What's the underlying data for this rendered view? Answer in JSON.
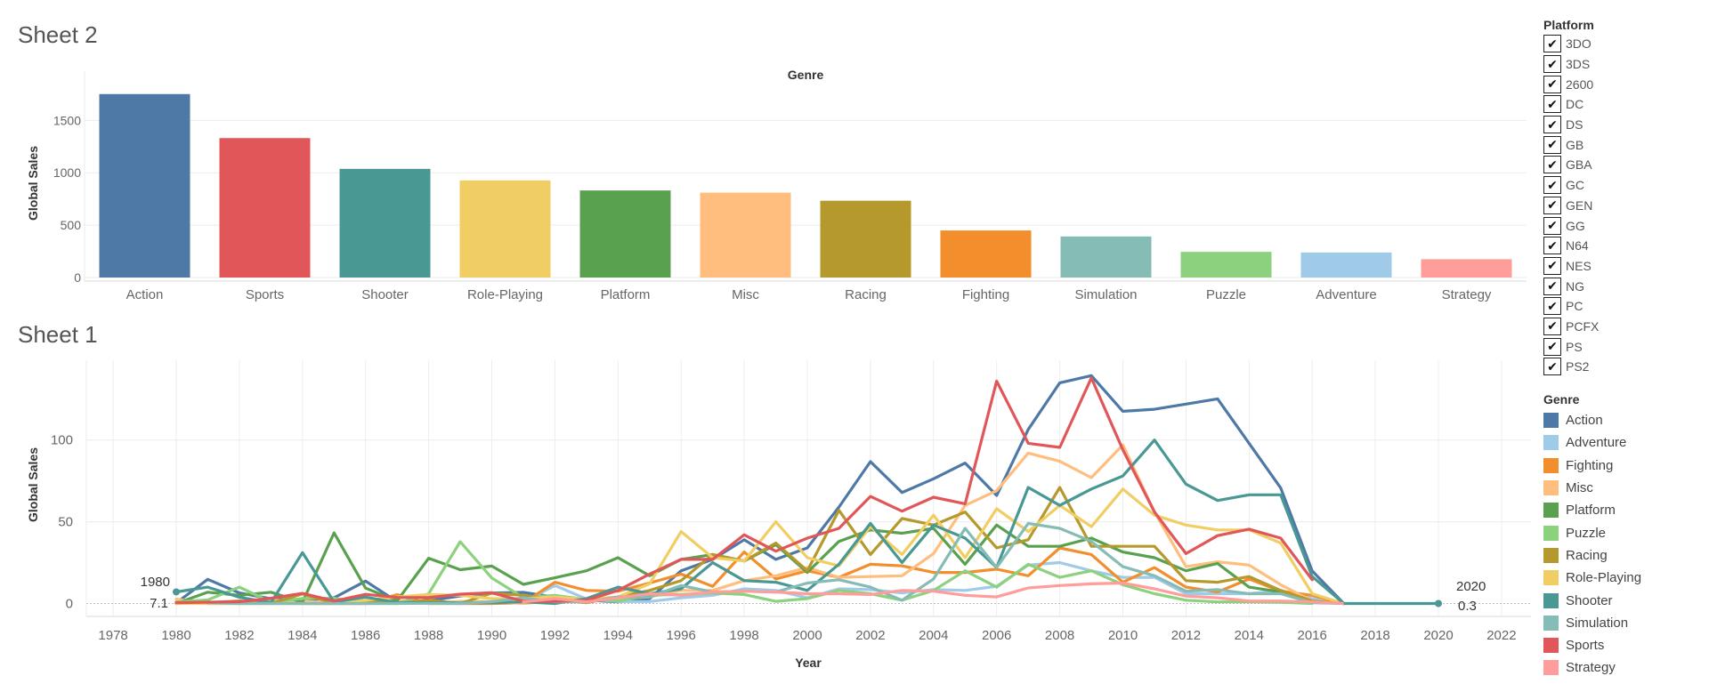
{
  "sheets": {
    "sheet2_title": "Sheet 2",
    "sheet1_title": "Sheet 1"
  },
  "colors": {
    "Action": "#4e79a7",
    "Adventure": "#a0cbe8",
    "Fighting": "#f28e2b",
    "Misc": "#ffbe7d",
    "Platform": "#59a14f",
    "Puzzle": "#8cd17d",
    "Racing": "#b6992d",
    "Role-Playing": "#f1ce63",
    "Shooter": "#499894",
    "Simulation": "#86bcb6",
    "Sports": "#e15759",
    "Strategy": "#ff9d9a"
  },
  "platform_filter": {
    "title": "Platform",
    "items": [
      "3DO",
      "3DS",
      "2600",
      "DC",
      "DS",
      "GB",
      "GBA",
      "GC",
      "GEN",
      "GG",
      "N64",
      "NES",
      "NG",
      "PC",
      "PCFX",
      "PS",
      "PS2"
    ],
    "check_glyph": "✔"
  },
  "genre_legend": {
    "title": "Genre",
    "items": [
      "Action",
      "Adventure",
      "Fighting",
      "Misc",
      "Platform",
      "Puzzle",
      "Racing",
      "Role-Playing",
      "Shooter",
      "Simulation",
      "Sports",
      "Strategy"
    ]
  },
  "chart_data": [
    {
      "type": "bar",
      "title": "Genre",
      "xlabel": "",
      "ylabel": "Global Sales",
      "ylim": [
        0,
        1800
      ],
      "yticks": [
        0,
        500,
        1000,
        1500
      ],
      "grid": true,
      "categories": [
        "Action",
        "Sports",
        "Shooter",
        "Role-Playing",
        "Platform",
        "Misc",
        "Racing",
        "Fighting",
        "Simulation",
        "Puzzle",
        "Adventure",
        "Strategy"
      ],
      "values": [
        1751,
        1331,
        1037,
        927,
        831,
        810,
        733,
        449,
        392,
        245,
        239,
        175
      ]
    },
    {
      "type": "line",
      "xlabel": "Year",
      "ylabel": "Global Sales",
      "xlim": [
        1977,
        2023
      ],
      "ylim": [
        -7,
        140
      ],
      "xticks": [
        1978,
        1980,
        1982,
        1984,
        1986,
        1988,
        1990,
        1992,
        1994,
        1996,
        1998,
        2000,
        2002,
        2004,
        2006,
        2008,
        2010,
        2012,
        2014,
        2016,
        2018,
        2020,
        2022
      ],
      "yticks": [
        0,
        50,
        100
      ],
      "grid": true,
      "annotations": [
        {
          "year_label": "1980",
          "value_label": "7.1",
          "year": 1980,
          "value": 7.1
        },
        {
          "year_label": "2020",
          "value_label": "0.3",
          "year": 2020,
          "value": 0.3
        }
      ],
      "series": [
        {
          "name": "Action",
          "x": [
            1980,
            1981,
            1982,
            1983,
            1984,
            1985,
            1986,
            1987,
            1988,
            1989,
            1990,
            1991,
            1992,
            1993,
            1994,
            1995,
            1996,
            1997,
            1998,
            1999,
            2000,
            2001,
            2002,
            2003,
            2004,
            2005,
            2006,
            2007,
            2008,
            2009,
            2010,
            2011,
            2012,
            2013,
            2014,
            2015,
            2016,
            2017
          ],
          "y": [
            0.3,
            14.8,
            6.5,
            2.9,
            1.9,
            3.5,
            13.7,
            1.1,
            1.7,
            4.6,
            6.4,
            6.8,
            3.9,
            2.0,
            1.0,
            3.0,
            20.0,
            27.0,
            39.0,
            27.0,
            34.0,
            59.0,
            86.8,
            67.9,
            76.3,
            85.9,
            66.1,
            106.5,
            135.0,
            139.4,
            117.6,
            118.8,
            122.0,
            125.2,
            98.0,
            70.7,
            19.9,
            0.0
          ]
        },
        {
          "name": "Adventure",
          "x": [
            1983,
            1984,
            1985,
            1986,
            1987,
            1988,
            1989,
            1990,
            1991,
            1992,
            1993,
            1994,
            1995,
            1996,
            1997,
            1998,
            1999,
            2000,
            2001,
            2002,
            2003,
            2004,
            2005,
            2006,
            2007,
            2008,
            2009,
            2010,
            2011,
            2012,
            2013,
            2014,
            2015,
            2016,
            2017
          ],
          "y": [
            0.4,
            0.0,
            0.0,
            0.0,
            1.7,
            0.0,
            0.0,
            0.0,
            1.0,
            11.0,
            2.8,
            1.2,
            1.2,
            3.5,
            5.0,
            9.0,
            8.0,
            3.5,
            9.0,
            8.5,
            6.5,
            8.5,
            8.0,
            10.5,
            23.5,
            25.0,
            20.0,
            16.0,
            16.0,
            6.0,
            6.0,
            6.0,
            8.0,
            3.0,
            0.0
          ]
        },
        {
          "name": "Fighting",
          "x": [
            1980,
            1981,
            1982,
            1983,
            1984,
            1985,
            1986,
            1987,
            1988,
            1989,
            1990,
            1991,
            1992,
            1993,
            1994,
            1995,
            1996,
            1997,
            1998,
            1999,
            2000,
            2001,
            2002,
            2003,
            2004,
            2005,
            2006,
            2007,
            2008,
            2009,
            2010,
            2011,
            2012,
            2013,
            2014,
            2015,
            2016,
            2017
          ],
          "y": [
            0.8,
            0.0,
            0.0,
            0.0,
            0.0,
            0.0,
            0.0,
            5.4,
            0.0,
            0.0,
            0.0,
            0.4,
            13.0,
            8.0,
            7.5,
            12.5,
            18.0,
            10.5,
            31.5,
            15.0,
            20.0,
            16.0,
            24.0,
            23.0,
            19.0,
            19.0,
            21.0,
            17.0,
            34.0,
            30.0,
            13.0,
            22.0,
            10.0,
            7.0,
            15.0,
            7.5,
            5.0,
            0.0
          ]
        },
        {
          "name": "Misc",
          "x": [
            1980,
            1981,
            1982,
            1983,
            1984,
            1985,
            1986,
            1987,
            1988,
            1989,
            1990,
            1991,
            1992,
            1993,
            1994,
            1995,
            1996,
            1997,
            1998,
            1999,
            2000,
            2001,
            2002,
            2003,
            2004,
            2005,
            2006,
            2007,
            2008,
            2009,
            2010,
            2011,
            2012,
            2013,
            2014,
            2015,
            2016,
            2017
          ],
          "y": [
            2.7,
            0.0,
            0.9,
            2.0,
            1.5,
            0.0,
            1.7,
            2.0,
            0.0,
            1.3,
            1.2,
            0.0,
            1.5,
            2.0,
            3.0,
            4.0,
            8.0,
            8.0,
            14.0,
            17.0,
            22.0,
            16.0,
            16.5,
            17.0,
            30.5,
            60.0,
            69.0,
            92.0,
            87.0,
            77.0,
            97.0,
            56.0,
            22.5,
            25.5,
            23.5,
            11.5,
            1.5,
            0.0
          ]
        },
        {
          "name": "Platform",
          "x": [
            1980,
            1981,
            1982,
            1983,
            1984,
            1985,
            1986,
            1987,
            1988,
            1989,
            1990,
            1991,
            1992,
            1993,
            1994,
            1995,
            1996,
            1997,
            1998,
            1999,
            2000,
            2001,
            2002,
            2003,
            2004,
            2005,
            2006,
            2007,
            2008,
            2009,
            2010,
            2011,
            2012,
            2013,
            2014,
            2015,
            2016,
            2017
          ],
          "y": [
            0.0,
            6.9,
            5.0,
            6.9,
            0.7,
            43.2,
            9.4,
            1.7,
            27.7,
            20.7,
            22.9,
            11.7,
            15.7,
            20.0,
            28.0,
            17.0,
            27.0,
            30.0,
            26.0,
            36.0,
            19.0,
            38.0,
            45.0,
            43.0,
            46.0,
            24.0,
            48.0,
            35.0,
            35.0,
            40.0,
            31.5,
            28.0,
            20.0,
            24.5,
            10.0,
            7.0,
            1.0,
            0.0
          ]
        },
        {
          "name": "Puzzle",
          "x": [
            1980,
            1981,
            1982,
            1983,
            1984,
            1985,
            1986,
            1987,
            1988,
            1989,
            1990,
            1991,
            1992,
            1993,
            1994,
            1995,
            1996,
            1997,
            1998,
            1999,
            2000,
            2001,
            2002,
            2003,
            2004,
            2005,
            2006,
            2007,
            2008,
            2009,
            2010,
            2011,
            2012,
            2013,
            2014,
            2015,
            2016
          ],
          "y": [
            1.0,
            2.2,
            10.0,
            0.8,
            3.1,
            3.2,
            0.0,
            0.0,
            6.0,
            37.8,
            15.6,
            3.6,
            5.0,
            2.5,
            1.5,
            5.0,
            5.5,
            6.5,
            5.5,
            1.3,
            3.0,
            8.0,
            6.0,
            2.0,
            8.0,
            20.0,
            10.0,
            24.0,
            16.0,
            20.0,
            11.5,
            6.0,
            2.0,
            1.0,
            1.0,
            0.7,
            0.0
          ]
        },
        {
          "name": "Racing",
          "x": [
            1980,
            1981,
            1982,
            1983,
            1984,
            1985,
            1986,
            1987,
            1988,
            1989,
            1990,
            1991,
            1992,
            1993,
            1994,
            1995,
            1996,
            1997,
            1998,
            1999,
            2000,
            2001,
            2002,
            2003,
            2004,
            2005,
            2006,
            2007,
            2008,
            2009,
            2010,
            2011,
            2012,
            2013,
            2014,
            2015,
            2016,
            2017
          ],
          "y": [
            0.0,
            0.5,
            1.6,
            0.0,
            5.9,
            0.0,
            1.9,
            0.0,
            2.1,
            0.0,
            6.3,
            5.0,
            2.5,
            0.5,
            4.0,
            8.0,
            14.0,
            30.0,
            26.0,
            37.0,
            20.0,
            57.0,
            30.0,
            52.0,
            48.0,
            56.0,
            34.0,
            39.0,
            71.0,
            35.0,
            35.0,
            35.0,
            14.0,
            13.0,
            16.5,
            8.0,
            1.5,
            0.0
          ]
        },
        {
          "name": "Role-Playing",
          "x": [
            1980,
            1981,
            1982,
            1983,
            1984,
            1985,
            1986,
            1987,
            1988,
            1989,
            1990,
            1991,
            1992,
            1993,
            1994,
            1995,
            1996,
            1997,
            1998,
            1999,
            2000,
            2001,
            2002,
            2003,
            2004,
            2005,
            2006,
            2007,
            2008,
            2009,
            2010,
            2011,
            2012,
            2013,
            2014,
            2015,
            2016,
            2017
          ],
          "y": [
            0.0,
            0.0,
            0.0,
            0.0,
            0.0,
            0.0,
            2.0,
            4.0,
            5.5,
            5.0,
            3.0,
            3.0,
            4.0,
            2.5,
            4.0,
            12.0,
            44.0,
            28.0,
            26.0,
            50.0,
            28.0,
            23.0,
            47.0,
            30.0,
            54.0,
            28.0,
            58.0,
            44.0,
            60.0,
            47.0,
            70.0,
            54.0,
            48.0,
            45.0,
            45.0,
            37.0,
            6.0,
            0.0
          ]
        },
        {
          "name": "Shooter",
          "x": [
            1980,
            1981,
            1982,
            1983,
            1984,
            1985,
            1986,
            1987,
            1988,
            1989,
            1990,
            1991,
            1992,
            1993,
            1994,
            1995,
            1996,
            1997,
            1998,
            1999,
            2000,
            2001,
            2002,
            2003,
            2004,
            2005,
            2006,
            2007,
            2008,
            2009,
            2010,
            2011,
            2012,
            2013,
            2014,
            2015,
            2016,
            2017
          ],
          "y": [
            7.1,
            10.0,
            3.8,
            0.5,
            31.1,
            1.0,
            3.9,
            0.5,
            0.5,
            0.4,
            0.5,
            1.0,
            0.0,
            3.0,
            10.0,
            6.0,
            9.0,
            25.0,
            14.0,
            13.0,
            8.0,
            24.0,
            49.0,
            25.0,
            48.0,
            40.0,
            22.0,
            71.0,
            60.0,
            70.0,
            78.0,
            100.0,
            73.0,
            63.0,
            66.5,
            66.5,
            16.5,
            0.0
          ]
        },
        {
          "name": "Simulation",
          "x": [
            1981,
            1982,
            1983,
            1984,
            1985,
            1986,
            1987,
            1988,
            1989,
            1990,
            1991,
            1992,
            1993,
            1994,
            1995,
            1996,
            1997,
            1998,
            1999,
            2000,
            2001,
            2002,
            2003,
            2004,
            2005,
            2006,
            2007,
            2008,
            2009,
            2010,
            2011,
            2012,
            2013,
            2014,
            2015,
            2016,
            2017
          ],
          "y": [
            0.5,
            0.0,
            0.0,
            0.0,
            0.0,
            0.0,
            0.0,
            0.1,
            0.0,
            1.1,
            3.5,
            1.0,
            1.0,
            4.0,
            4.0,
            11.0,
            7.0,
            7.5,
            7.0,
            12.5,
            14.5,
            10.0,
            2.0,
            15.0,
            46.0,
            22.0,
            49.0,
            46.0,
            38.0,
            22.5,
            17.0,
            7.5,
            8.5,
            6.0,
            6.0,
            0.5,
            0.0
          ]
        },
        {
          "name": "Sports",
          "x": [
            1980,
            1981,
            1982,
            1983,
            1984,
            1985,
            1986,
            1987,
            1988,
            1989,
            1990,
            1991,
            1992,
            1993,
            1994,
            1995,
            1996,
            1997,
            1998,
            1999,
            2000,
            2001,
            2002,
            2003,
            2004,
            2005,
            2006,
            2007,
            2008,
            2009,
            2010,
            2011,
            2012,
            2013,
            2014,
            2015,
            2016
          ],
          "y": [
            0.5,
            0.8,
            1.1,
            3.2,
            6.2,
            1.5,
            5.6,
            3.7,
            3.6,
            5.7,
            6.6,
            1.4,
            1.3,
            2.0,
            8.0,
            18.0,
            27.0,
            27.0,
            42.0,
            32.0,
            40.0,
            46.0,
            65.5,
            56.5,
            65.0,
            61.0,
            136.0,
            98.0,
            95.5,
            138.0,
            94.0,
            56.0,
            30.5,
            41.5,
            45.5,
            40.0,
            14.5
          ]
        },
        {
          "name": "Strategy",
          "x": [
            1991,
            1992,
            1993,
            1994,
            1995,
            1996,
            1997,
            1998,
            1999,
            2000,
            2001,
            2002,
            2003,
            2004,
            2005,
            2006,
            2007,
            2008,
            2009,
            2010,
            2011,
            2012,
            2013,
            2014,
            2015,
            2016,
            2017
          ],
          "y": [
            1.0,
            3.0,
            1.0,
            3.5,
            6.0,
            5.0,
            7.0,
            7.5,
            7.0,
            6.0,
            6.0,
            5.5,
            8.0,
            7.5,
            5.0,
            4.0,
            9.5,
            11.0,
            12.0,
            12.5,
            9.0,
            4.5,
            3.5,
            1.5,
            1.5,
            1.0,
            0.0
          ]
        }
      ]
    }
  ]
}
